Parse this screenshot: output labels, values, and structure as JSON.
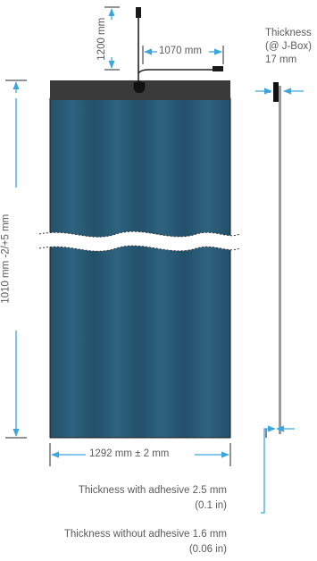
{
  "dimensions": {
    "cable_length": "1200 mm",
    "cable_offset": "1070 mm",
    "height": "1010 mm  -2/+5  mm",
    "width": "1292 mm ± 2 mm"
  },
  "thickness_jbox": {
    "line1": "Thickness",
    "line2": "(@ J-Box)",
    "line3": "17 mm"
  },
  "thickness_with_adhesive": {
    "value": "Thickness with adhesive 2.5 mm",
    "inches": "(0.1 in)"
  },
  "thickness_without_adhesive": {
    "value": "Thickness without adhesive 1.6 mm",
    "inches": "(0.06 in)"
  },
  "colors": {
    "panel": "#244e66",
    "panel_stripe": "#2f6480",
    "header_bar": "#3a3a3a",
    "arrow": "#3ba7dd",
    "dim_line": "#2a2a2a"
  }
}
